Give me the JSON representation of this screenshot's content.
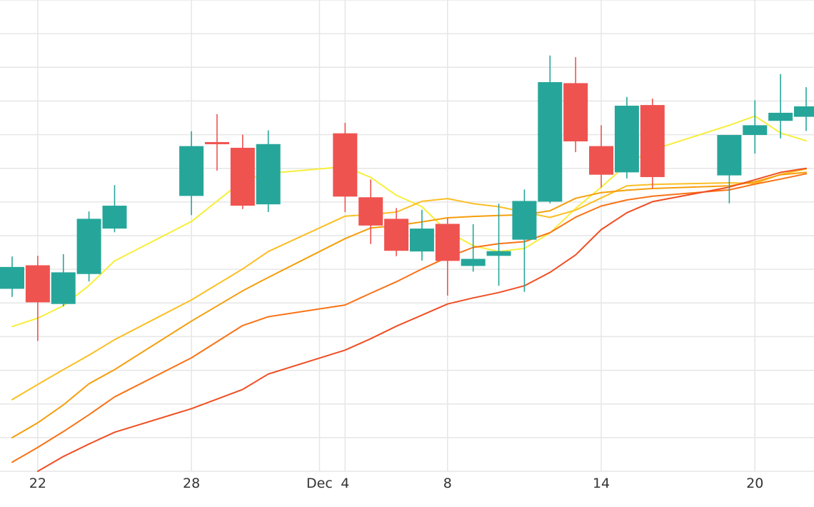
{
  "chart_data": {
    "type": "candlestick",
    "title": "",
    "xlabel": "",
    "ylabel": "",
    "grid": true,
    "legend": "none",
    "x_range": [
      "Nov 21",
      "Dec 22"
    ],
    "y_range": [
      0,
      14
    ],
    "x_tick_labels": [
      {
        "date": "Nov 22",
        "label": "22"
      },
      {
        "date": "Nov 28",
        "label": "28"
      },
      {
        "date": "Dec 3",
        "label": "Dec"
      },
      {
        "date": "Dec 4",
        "label": "4"
      },
      {
        "date": "Dec 8",
        "label": "8"
      },
      {
        "date": "Dec 14",
        "label": "14"
      },
      {
        "date": "Dec 20",
        "label": "20"
      }
    ],
    "candles": [
      {
        "date": "Nov 21",
        "open": 5.42,
        "high": 6.38,
        "low": 5.18,
        "close": 6.07
      },
      {
        "date": "Nov 22",
        "open": 6.12,
        "high": 6.4,
        "low": 3.87,
        "close": 5.02
      },
      {
        "date": "Nov 23",
        "open": 4.97,
        "high": 6.45,
        "low": 4.9,
        "close": 5.91
      },
      {
        "date": "Nov 24",
        "open": 5.86,
        "high": 7.72,
        "low": 5.64,
        "close": 7.5
      },
      {
        "date": "Nov 25",
        "open": 7.21,
        "high": 8.5,
        "low": 7.1,
        "close": 7.89
      },
      {
        "date": "Nov 28",
        "open": 8.18,
        "high": 10.1,
        "low": 7.61,
        "close": 9.66
      },
      {
        "date": "Nov 29",
        "open": 9.78,
        "high": 10.61,
        "low": 8.93,
        "close": 9.72
      },
      {
        "date": "Nov 30",
        "open": 9.61,
        "high": 10.0,
        "low": 7.79,
        "close": 7.89
      },
      {
        "date": "Dec 1",
        "open": 7.93,
        "high": 10.13,
        "low": 7.7,
        "close": 9.72
      },
      {
        "date": "Dec 4",
        "open": 10.04,
        "high": 10.35,
        "low": 7.7,
        "close": 8.16
      },
      {
        "date": "Dec 5",
        "open": 8.14,
        "high": 8.67,
        "low": 6.75,
        "close": 7.3
      },
      {
        "date": "Dec 6",
        "open": 7.5,
        "high": 7.82,
        "low": 6.39,
        "close": 6.55
      },
      {
        "date": "Dec 7",
        "open": 6.53,
        "high": 7.77,
        "low": 6.26,
        "close": 7.21
      },
      {
        "date": "Dec 8",
        "open": 7.35,
        "high": 7.52,
        "low": 5.22,
        "close": 6.25
      },
      {
        "date": "Dec 9",
        "open": 6.1,
        "high": 7.34,
        "low": 5.93,
        "close": 6.31
      },
      {
        "date": "Dec 10",
        "open": 6.4,
        "high": 7.95,
        "low": 5.51,
        "close": 6.54
      },
      {
        "date": "Dec 11",
        "open": 6.88,
        "high": 8.37,
        "low": 5.33,
        "close": 8.03
      },
      {
        "date": "Dec 12",
        "open": 8.01,
        "high": 12.35,
        "low": 7.96,
        "close": 11.56
      },
      {
        "date": "Dec 13",
        "open": 11.53,
        "high": 12.3,
        "low": 9.48,
        "close": 9.8
      },
      {
        "date": "Dec 14",
        "open": 9.66,
        "high": 10.28,
        "low": 8.43,
        "close": 8.81
      },
      {
        "date": "Dec 15",
        "open": 8.88,
        "high": 11.12,
        "low": 8.7,
        "close": 10.86
      },
      {
        "date": "Dec 16",
        "open": 10.88,
        "high": 11.07,
        "low": 8.4,
        "close": 8.74
      },
      {
        "date": "Dec 19",
        "open": 8.79,
        "high": 9.98,
        "low": 7.96,
        "close": 9.99
      },
      {
        "date": "Dec 20",
        "open": 9.99,
        "high": 11.02,
        "low": 9.44,
        "close": 10.28
      },
      {
        "date": "Dec 21",
        "open": 10.41,
        "high": 11.8,
        "low": 9.89,
        "close": 10.65
      },
      {
        "date": "Dec 22",
        "open": 10.53,
        "high": 11.41,
        "low": 10.11,
        "close": 10.84
      }
    ],
    "moving_averages": [
      {
        "color": "#f7ee3a",
        "points": [
          [
            "Nov 21",
            4.3
          ],
          [
            "Nov 22",
            4.55
          ],
          [
            "Nov 23",
            4.92
          ],
          [
            "Nov 24",
            5.52
          ],
          [
            "Nov 25",
            6.25
          ],
          [
            "Nov 28",
            7.42
          ],
          [
            "Nov 30",
            8.63
          ],
          [
            "Dec 1",
            8.85
          ],
          [
            "Dec 4",
            9.05
          ],
          [
            "Dec 5",
            8.73
          ],
          [
            "Dec 6",
            8.2
          ],
          [
            "Dec 7",
            7.86
          ],
          [
            "Dec 8",
            7.12
          ],
          [
            "Dec 9",
            6.7
          ],
          [
            "Dec 10",
            6.53
          ],
          [
            "Dec 11",
            6.62
          ],
          [
            "Dec 12",
            7.08
          ],
          [
            "Dec 13",
            7.81
          ],
          [
            "Dec 14",
            8.44
          ],
          [
            "Dec 15",
            9.12
          ],
          [
            "Dec 16",
            9.55
          ],
          [
            "Dec 19",
            10.28
          ],
          [
            "Dec 20",
            10.55
          ],
          [
            "Dec 21",
            10.05
          ],
          [
            "Dec 22",
            9.82
          ]
        ]
      },
      {
        "color": "#fbbf24",
        "points": [
          [
            "Nov 21",
            2.13
          ],
          [
            "Nov 22",
            2.58
          ],
          [
            "Nov 23",
            3.02
          ],
          [
            "Nov 24",
            3.45
          ],
          [
            "Nov 25",
            3.91
          ],
          [
            "Nov 28",
            5.09
          ],
          [
            "Nov 30",
            6.01
          ],
          [
            "Dec 1",
            6.53
          ],
          [
            "Dec 4",
            7.58
          ],
          [
            "Dec 5",
            7.63
          ],
          [
            "Dec 6",
            7.7
          ],
          [
            "Dec 7",
            8.02
          ],
          [
            "Dec 8",
            8.1
          ],
          [
            "Dec 9",
            7.95
          ],
          [
            "Dec 10",
            7.86
          ],
          [
            "Dec 11",
            7.7
          ],
          [
            "Dec 12",
            7.54
          ],
          [
            "Dec 13",
            7.76
          ],
          [
            "Dec 14",
            8.12
          ],
          [
            "Dec 15",
            8.48
          ],
          [
            "Dec 16",
            8.52
          ],
          [
            "Dec 19",
            8.57
          ],
          [
            "Dec 20",
            8.55
          ],
          [
            "Dec 21",
            8.82
          ],
          [
            "Dec 22",
            8.98
          ]
        ]
      },
      {
        "color": "#f59e0b",
        "points": [
          [
            "Nov 21",
            1.0
          ],
          [
            "Nov 22",
            1.44
          ],
          [
            "Nov 23",
            1.97
          ],
          [
            "Nov 24",
            2.6
          ],
          [
            "Nov 25",
            3.02
          ],
          [
            "Nov 28",
            4.46
          ],
          [
            "Nov 30",
            5.36
          ],
          [
            "Dec 1",
            5.76
          ],
          [
            "Dec 4",
            6.91
          ],
          [
            "Dec 5",
            7.23
          ],
          [
            "Dec 6",
            7.3
          ],
          [
            "Dec 7",
            7.41
          ],
          [
            "Dec 8",
            7.53
          ],
          [
            "Dec 9",
            7.57
          ],
          [
            "Dec 10",
            7.6
          ],
          [
            "Dec 11",
            7.62
          ],
          [
            "Dec 12",
            7.74
          ],
          [
            "Dec 13",
            8.11
          ],
          [
            "Dec 14",
            8.28
          ],
          [
            "Dec 15",
            8.35
          ],
          [
            "Dec 16",
            8.4
          ],
          [
            "Dec 19",
            8.48
          ],
          [
            "Dec 20",
            8.6
          ],
          [
            "Dec 21",
            8.81
          ],
          [
            "Dec 22",
            8.88
          ]
        ]
      },
      {
        "color": "#f97316",
        "points": [
          [
            "Nov 21",
            0.27
          ],
          [
            "Nov 22",
            0.71
          ],
          [
            "Nov 23",
            1.18
          ],
          [
            "Nov 24",
            1.68
          ],
          [
            "Nov 25",
            2.21
          ],
          [
            "Nov 28",
            3.37
          ],
          [
            "Nov 30",
            4.33
          ],
          [
            "Dec 1",
            4.59
          ],
          [
            "Dec 4",
            4.94
          ],
          [
            "Dec 5",
            5.29
          ],
          [
            "Dec 6",
            5.63
          ],
          [
            "Dec 7",
            6.01
          ],
          [
            "Dec 8",
            6.36
          ],
          [
            "Dec 9",
            6.65
          ],
          [
            "Dec 10",
            6.76
          ],
          [
            "Dec 11",
            6.82
          ],
          [
            "Dec 12",
            7.09
          ],
          [
            "Dec 13",
            7.55
          ],
          [
            "Dec 14",
            7.88
          ],
          [
            "Dec 15",
            8.06
          ],
          [
            "Dec 16",
            8.17
          ],
          [
            "Dec 19",
            8.36
          ],
          [
            "Dec 20",
            8.53
          ],
          [
            "Dec 21",
            8.68
          ],
          [
            "Dec 22",
            8.84
          ]
        ]
      },
      {
        "color": "#f04e23",
        "points": [
          [
            "Nov 22",
            0.0
          ],
          [
            "Nov 23",
            0.44
          ],
          [
            "Nov 24",
            0.81
          ],
          [
            "Nov 25",
            1.16
          ],
          [
            "Nov 28",
            1.86
          ],
          [
            "Nov 30",
            2.43
          ],
          [
            "Dec 1",
            2.89
          ],
          [
            "Dec 4",
            3.6
          ],
          [
            "Dec 5",
            3.94
          ],
          [
            "Dec 6",
            4.31
          ],
          [
            "Dec 7",
            4.64
          ],
          [
            "Dec 8",
            4.97
          ],
          [
            "Dec 9",
            5.15
          ],
          [
            "Dec 10",
            5.31
          ],
          [
            "Dec 11",
            5.51
          ],
          [
            "Dec 12",
            5.91
          ],
          [
            "Dec 13",
            6.43
          ],
          [
            "Dec 14",
            7.18
          ],
          [
            "Dec 15",
            7.68
          ],
          [
            "Dec 16",
            8.01
          ],
          [
            "Dec 19",
            8.44
          ],
          [
            "Dec 20",
            8.66
          ],
          [
            "Dec 21",
            8.88
          ],
          [
            "Dec 22",
            9.0
          ]
        ]
      }
    ]
  },
  "colors": {
    "up": "#26a69a",
    "down": "#ef5350",
    "grid": "#e6e6e6",
    "background": "#ffffff",
    "tick_text": "#333333"
  }
}
